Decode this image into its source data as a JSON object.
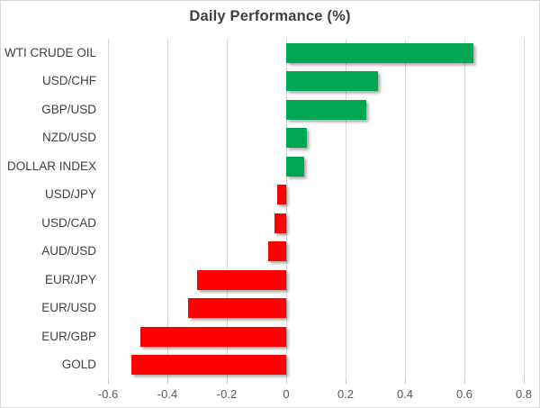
{
  "chart_data": {
    "type": "bar",
    "orientation": "horizontal",
    "title": "Daily Performance (%)",
    "categories": [
      "WTI CRUDE OIL",
      "USD/CHF",
      "GBP/USD",
      "NZD/USD",
      "DOLLAR INDEX",
      "USD/JPY",
      "USD/CAD",
      "AUD/USD",
      "EUR/JPY",
      "EUR/USD",
      "EUR/GBP",
      "GOLD"
    ],
    "values": [
      0.63,
      0.31,
      0.27,
      0.07,
      0.06,
      -0.03,
      -0.04,
      -0.06,
      -0.3,
      -0.33,
      -0.49,
      -0.52
    ],
    "xlim": [
      -0.6,
      0.8
    ],
    "xticks": [
      -0.6,
      -0.4,
      -0.2,
      0,
      0.2,
      0.4,
      0.6,
      0.8
    ],
    "xtick_labels": [
      "-0.6",
      "-0.4",
      "-0.2",
      "0",
      "0.2",
      "0.4",
      "0.6",
      "0.8"
    ],
    "xlabel": "",
    "ylabel": "",
    "grid": true,
    "legend": "none",
    "positive_color": "#00A652",
    "negative_color": "#FF0000",
    "title_color": "#404040",
    "category_label_color": "#404040",
    "axis_label_color": "#595959",
    "gridline_color": "#D9D9D9"
  }
}
